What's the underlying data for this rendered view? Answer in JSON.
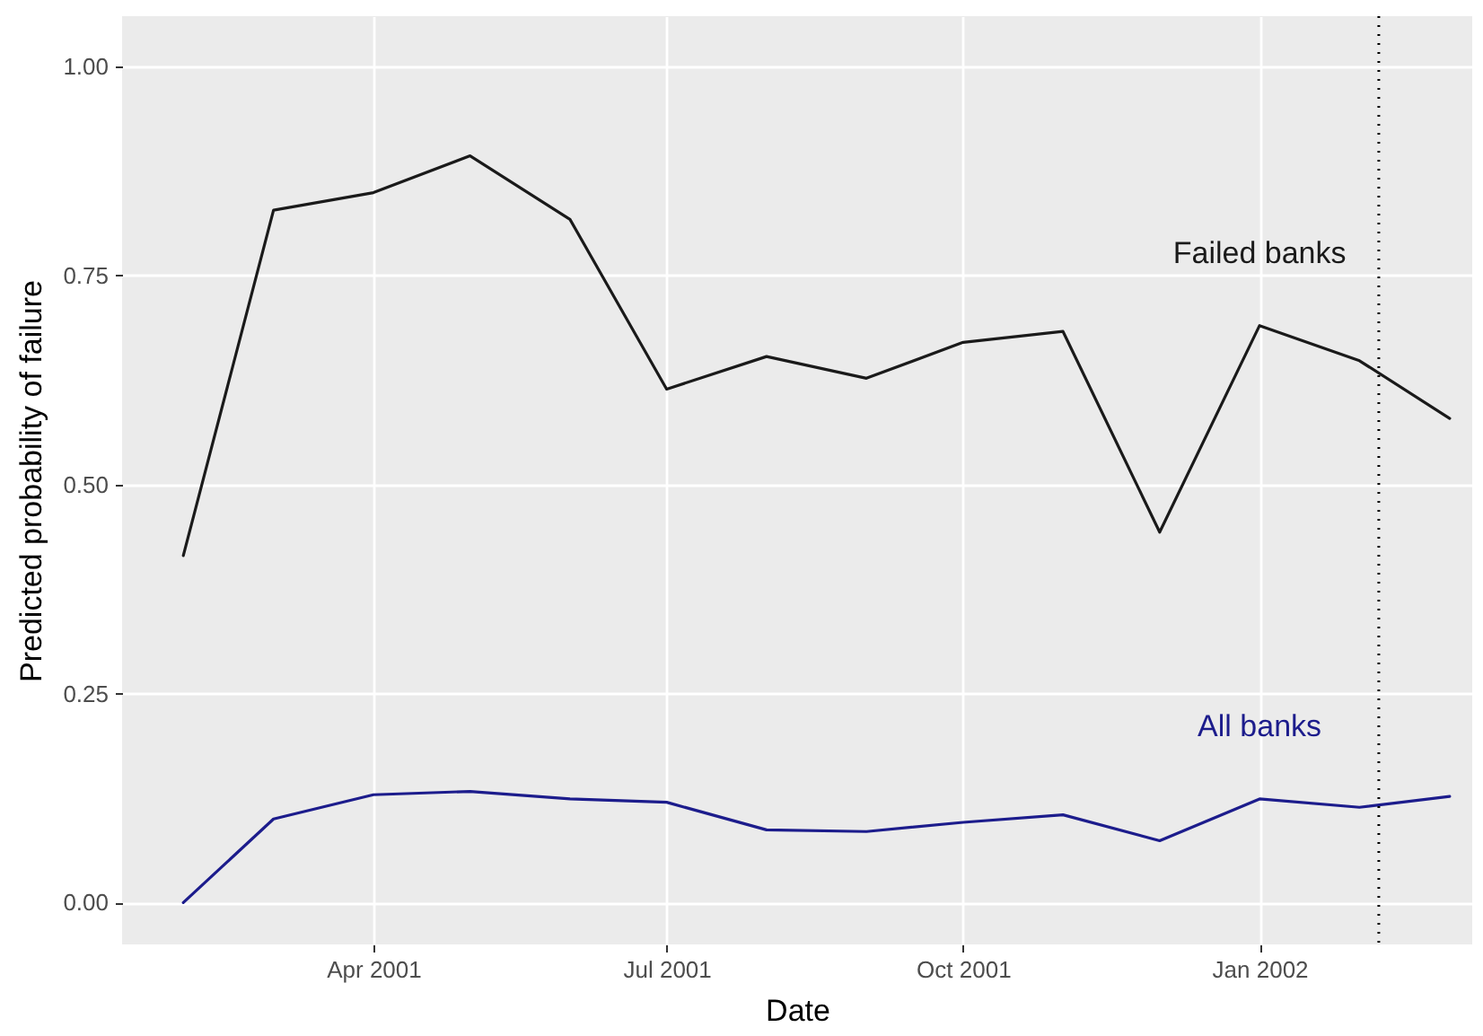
{
  "chart_data": {
    "type": "line",
    "xlabel": "Date",
    "ylabel": "Predicted probability of failure",
    "x": [
      "2001-02",
      "2001-03",
      "2001-04",
      "2001-05",
      "2001-06",
      "2001-07",
      "2001-08",
      "2001-09",
      "2001-10",
      "2001-11",
      "2001-12",
      "2002-01",
      "2002-02",
      "2002-03"
    ],
    "series": [
      {
        "name": "Failed banks",
        "color": "#1a1a1a",
        "values": [
          0.415,
          0.828,
          0.849,
          0.893,
          0.817,
          0.614,
          0.653,
          0.627,
          0.67,
          0.683,
          0.443,
          0.69,
          0.648,
          0.579
        ]
      },
      {
        "name": "All banks",
        "color": "#1c1c8c",
        "values": [
          0.0,
          0.1,
          0.129,
          0.133,
          0.124,
          0.12,
          0.087,
          0.085,
          0.096,
          0.105,
          0.074,
          0.124,
          0.114,
          0.127
        ]
      }
    ],
    "xlim": [
      "2001-01-13",
      "2002-03-08"
    ],
    "xticks": [
      {
        "value": "2001-04",
        "label": "Apr 2001"
      },
      {
        "value": "2001-07",
        "label": "Jul 2001"
      },
      {
        "value": "2001-10",
        "label": "Oct 2001"
      },
      {
        "value": "2002-01",
        "label": "Jan 2002"
      }
    ],
    "ylim": [
      -0.05,
      1.06
    ],
    "yticks": [
      {
        "value": 0,
        "label": "0.00"
      },
      {
        "value": 0.25,
        "label": "0.25"
      },
      {
        "value": 0.5,
        "label": "0.50"
      },
      {
        "value": 0.75,
        "label": "0.75"
      },
      {
        "value": 1,
        "label": "1.00"
      }
    ],
    "ref_lines": [
      {
        "axis": "x",
        "value": "2002-02-07",
        "color": "#000000",
        "line_style": "dotted"
      }
    ],
    "grid": true,
    "marker": "none",
    "line_style": "solid"
  }
}
